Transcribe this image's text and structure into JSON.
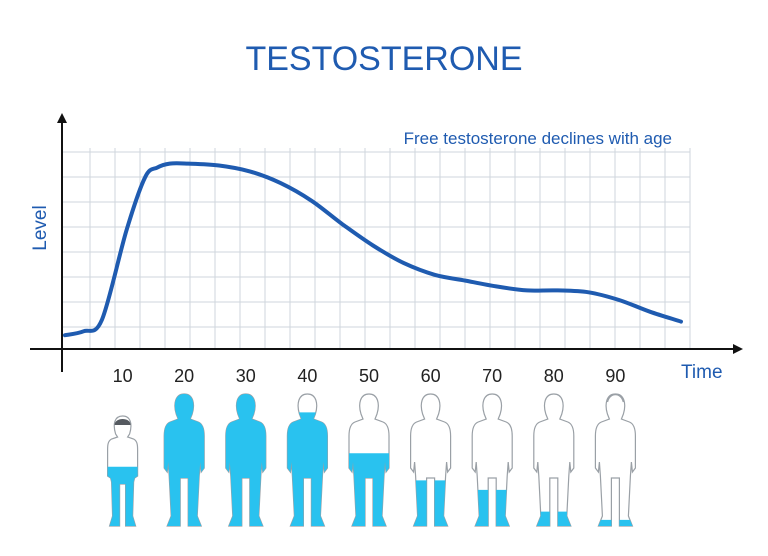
{
  "chart_data": {
    "type": "line",
    "title": "TESTOSTERONE",
    "annotation": "Free testosterone declines with age",
    "xlabel": "Time",
    "ylabel": "Level",
    "xlim": [
      0,
      100
    ],
    "ylim": [
      0,
      100
    ],
    "grid": true,
    "x_ticks": [
      10,
      20,
      30,
      40,
      50,
      60,
      70,
      80,
      90
    ],
    "series": [
      {
        "values_x": [
          0,
          3,
          6,
          10,
          13,
          15,
          17,
          20,
          25,
          30,
          35,
          40,
          45,
          50,
          55,
          60,
          65,
          70,
          75,
          80,
          85,
          90,
          95,
          100
        ],
        "values_y": [
          4,
          6,
          12,
          58,
          85,
          90,
          92,
          92,
          91,
          88,
          82,
          73,
          61,
          50,
          41,
          35,
          32,
          29,
          27,
          27,
          26,
          22,
          16,
          11
        ],
        "color": "#1f5bb0"
      }
    ],
    "figures": [
      {
        "age": 10,
        "fill_fraction": 0.45,
        "style": "child"
      },
      {
        "age": 20,
        "fill_fraction": 1.0,
        "style": "adult"
      },
      {
        "age": 30,
        "fill_fraction": 1.0,
        "style": "adult"
      },
      {
        "age": 40,
        "fill_fraction": 0.85,
        "style": "adult"
      },
      {
        "age": 50,
        "fill_fraction": 0.55,
        "style": "adult"
      },
      {
        "age": 60,
        "fill_fraction": 0.35,
        "style": "adult"
      },
      {
        "age": 70,
        "fill_fraction": 0.28,
        "style": "adult"
      },
      {
        "age": 80,
        "fill_fraction": 0.12,
        "style": "adult"
      },
      {
        "age": 90,
        "fill_fraction": 0.06,
        "style": "elder"
      }
    ],
    "figure_fill_color": "#29c2ef",
    "figure_outline_color": "#9aa0a6"
  }
}
